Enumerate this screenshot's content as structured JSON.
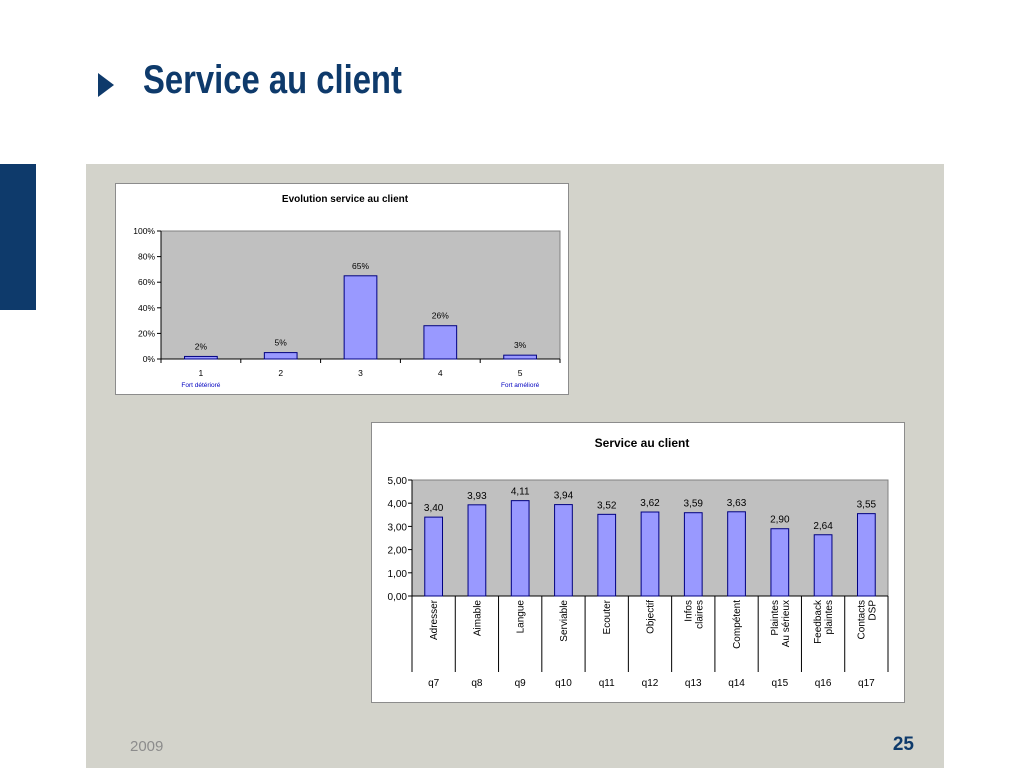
{
  "slide": {
    "title": "Service au client",
    "footer_year": "2009",
    "page_number": "25"
  },
  "colors": {
    "title": "#0e3a6b",
    "panel": "#d3d3cb",
    "plot_area": "#c0c0c0",
    "bar_fill": "#9999ff",
    "bar_stroke": "#000080",
    "note_text": "#0000c0"
  },
  "chart_data": [
    {
      "type": "bar",
      "title": "Evolution service au client",
      "categories": [
        "1",
        "2",
        "3",
        "4",
        "5"
      ],
      "category_notes": [
        "Fort détérioré",
        "",
        "",
        "",
        "Fort amélioré"
      ],
      "values": [
        2,
        5,
        65,
        26,
        3
      ],
      "data_labels": [
        "2%",
        "5%",
        "65%",
        "26%",
        "3%"
      ],
      "ylim": [
        0,
        100
      ],
      "yticks": [
        0,
        20,
        40,
        60,
        80,
        100
      ],
      "ytick_labels": [
        "0%",
        "20%",
        "40%",
        "60%",
        "80%",
        "100%"
      ],
      "grid": false,
      "legend": "none"
    },
    {
      "type": "bar",
      "title": "Service au client",
      "categories": [
        "Adresser",
        "Aimable",
        "Langue",
        "Serviable",
        "Ecouter",
        "Objectif",
        "Infos claires",
        "Compétent",
        "Plaintes Au sérieux",
        "Feedback plaintes",
        "Contacts DSP"
      ],
      "category_lines": [
        [
          "Adresser"
        ],
        [
          "Aimable"
        ],
        [
          "Langue"
        ],
        [
          "Serviable"
        ],
        [
          "Ecouter"
        ],
        [
          "Objectif"
        ],
        [
          "Infos",
          "claires"
        ],
        [
          "Compétent"
        ],
        [
          "Plaintes",
          "Au sérieux"
        ],
        [
          "Feedback",
          "plaintes"
        ],
        [
          "Contacts",
          "DSP"
        ]
      ],
      "question_codes": [
        "q7",
        "q8",
        "q9",
        "q10",
        "q11",
        "q12",
        "q13",
        "q14",
        "q15",
        "q16",
        "q17"
      ],
      "values": [
        3.4,
        3.93,
        4.11,
        3.94,
        3.52,
        3.62,
        3.59,
        3.63,
        2.9,
        2.64,
        3.55
      ],
      "data_labels": [
        "3,40",
        "3,93",
        "4,11",
        "3,94",
        "3,52",
        "3,62",
        "3,59",
        "3,63",
        "2,90",
        "2,64",
        "3,55"
      ],
      "ylim": [
        0,
        5
      ],
      "yticks": [
        0,
        1,
        2,
        3,
        4,
        5
      ],
      "ytick_labels": [
        "0,00",
        "1,00",
        "2,00",
        "3,00",
        "4,00",
        "5,00"
      ],
      "grid": false,
      "legend": "none"
    }
  ]
}
